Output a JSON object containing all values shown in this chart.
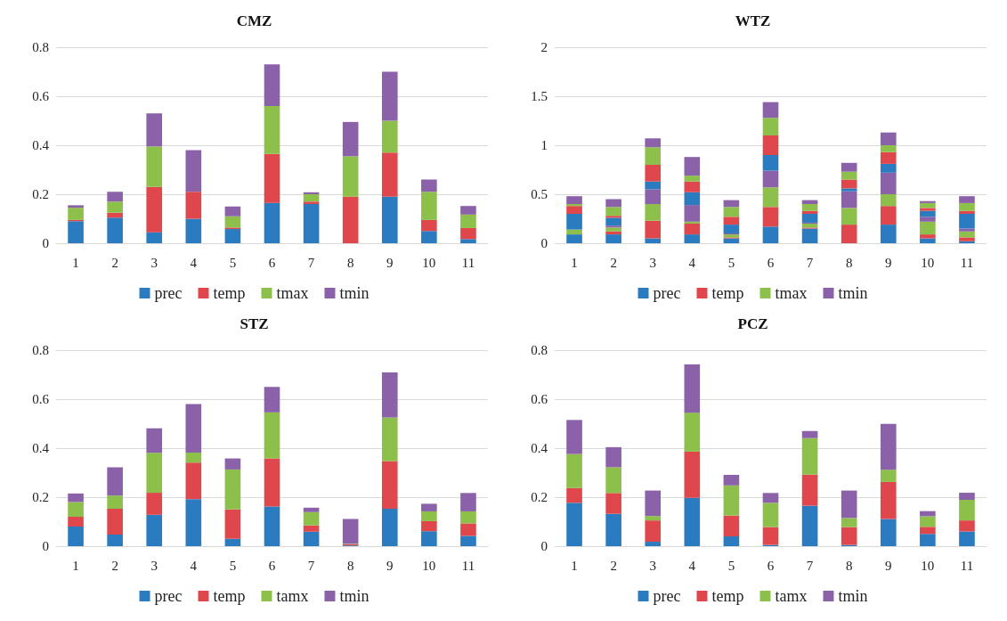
{
  "chart_data": [
    {
      "type": "bar",
      "title": "CMZ",
      "categories": [
        "1",
        "2",
        "3",
        "4",
        "5",
        "6",
        "7",
        "8",
        "9",
        "10",
        "11"
      ],
      "stacked": true,
      "ylim": [
        0,
        0.8
      ],
      "yticks": [
        0,
        0.2,
        0.4,
        0.6,
        0.8
      ],
      "grid": "y",
      "legend": "bottom",
      "series": [
        {
          "name": "prec",
          "color": "#2a7bc0",
          "values": [
            0.09,
            0.105,
            0.045,
            0.1,
            0.058,
            0.165,
            0.16,
            0,
            0.19,
            0.05,
            0.017
          ]
        },
        {
          "name": "temp",
          "color": "#e0474c",
          "values": [
            0.005,
            0.02,
            0.185,
            0.11,
            0.006,
            0.2,
            0.01,
            0.19,
            0.18,
            0.045,
            0.045
          ]
        },
        {
          "name": "tmax",
          "color": "#8dc04a",
          "values": [
            0.05,
            0.045,
            0.165,
            0,
            0.046,
            0.195,
            0.03,
            0.165,
            0.13,
            0.115,
            0.055
          ]
        },
        {
          "name": "tmin",
          "color": "#8b62a9",
          "values": [
            0.01,
            0.04,
            0.135,
            0.17,
            0.04,
            0.17,
            0.008,
            0.14,
            0.2,
            0.05,
            0.035
          ]
        }
      ]
    },
    {
      "type": "bar",
      "title": "WTZ",
      "categories": [
        "1",
        "2",
        "3",
        "4",
        "5",
        "6",
        "7",
        "8",
        "9",
        "10",
        "11"
      ],
      "stacked": true,
      "ylim": [
        0,
        2
      ],
      "yticks": [
        0,
        0.5,
        1,
        1.5,
        2
      ],
      "grid": "y",
      "legend": "bottom",
      "series": [
        {
          "name": "prec",
          "color": "#2a7bc0",
          "values": [
            0.09,
            0.09,
            0.05,
            0.09,
            0.05,
            0.17,
            0.15,
            0,
            0.19,
            0.05,
            0.02
          ]
        },
        {
          "name": "temp",
          "color": "#e0474c",
          "values": [
            0,
            0.03,
            0.18,
            0.11,
            0.01,
            0.2,
            0.01,
            0.19,
            0.19,
            0.04,
            0.04
          ]
        },
        {
          "name": "tmax",
          "color": "#8dc04a",
          "values": [
            0.05,
            0.04,
            0.17,
            0.02,
            0.03,
            0.2,
            0.04,
            0.17,
            0.12,
            0.13,
            0.06
          ]
        },
        {
          "name": "tmin",
          "color": "#8b62a9",
          "values": [
            0,
            0.02,
            0.15,
            0.17,
            0.01,
            0.17,
            0.01,
            0.17,
            0.22,
            0.05,
            0.03
          ]
        },
        {
          "color": "#2a7bc0",
          "values": [
            0.16,
            0.08,
            0.08,
            0.13,
            0.09,
            0.16,
            0.09,
            0.03,
            0.09,
            0.06,
            0.15
          ]
        },
        {
          "color": "#e0474c",
          "values": [
            0.08,
            0.02,
            0.17,
            0.11,
            0.08,
            0.2,
            0.03,
            0.09,
            0.12,
            0.03,
            0.03
          ]
        },
        {
          "color": "#8dc04a",
          "values": [
            0.02,
            0.09,
            0.18,
            0.06,
            0.1,
            0.18,
            0.07,
            0.08,
            0.07,
            0.05,
            0.08
          ]
        },
        {
          "color": "#8b62a9",
          "values": [
            0.08,
            0.08,
            0.09,
            0.19,
            0.07,
            0.16,
            0.04,
            0.09,
            0.13,
            0.02,
            0.07
          ]
        }
      ]
    },
    {
      "type": "bar",
      "title": "STZ",
      "categories": [
        "1",
        "2",
        "3",
        "4",
        "5",
        "6",
        "7",
        "8",
        "9",
        "10",
        "11"
      ],
      "stacked": true,
      "ylim": [
        0,
        0.8
      ],
      "yticks": [
        0,
        0.2,
        0.4,
        0.6,
        0.8
      ],
      "grid": "y",
      "legend": "bottom",
      "series": [
        {
          "name": "prec",
          "color": "#2a7bc0",
          "values": [
            0.08,
            0.047,
            0.128,
            0.192,
            0.03,
            0.162,
            0.059,
            0.003,
            0.153,
            0.061,
            0.042
          ]
        },
        {
          "name": "temp",
          "color": "#e0474c",
          "values": [
            0.04,
            0.106,
            0.09,
            0.149,
            0.12,
            0.196,
            0.026,
            0.005,
            0.194,
            0.041,
            0.051
          ]
        },
        {
          "name": "tamx",
          "color": "#8dc04a",
          "values": [
            0.06,
            0.053,
            0.163,
            0.041,
            0.163,
            0.188,
            0.054,
            0.002,
            0.178,
            0.04,
            0.049
          ]
        },
        {
          "name": "tmin",
          "color": "#8b62a9",
          "values": [
            0.035,
            0.116,
            0.1,
            0.198,
            0.045,
            0.104,
            0.018,
            0.101,
            0.184,
            0.031,
            0.075
          ]
        }
      ]
    },
    {
      "type": "bar",
      "title": "PCZ",
      "categories": [
        "1",
        "2",
        "3",
        "4",
        "5",
        "6",
        "7",
        "8",
        "9",
        "10",
        "11"
      ],
      "stacked": true,
      "ylim": [
        0,
        0.8
      ],
      "yticks": [
        0,
        0.2,
        0.4,
        0.6,
        0.8
      ],
      "grid": "y",
      "legend": "bottom",
      "series": [
        {
          "name": "prec",
          "color": "#2a7bc0",
          "values": [
            0.177,
            0.132,
            0.018,
            0.197,
            0.04,
            0.005,
            0.165,
            0.005,
            0.111,
            0.05,
            0.06
          ]
        },
        {
          "name": "temp",
          "color": "#e0474c",
          "values": [
            0.06,
            0.085,
            0.087,
            0.189,
            0.085,
            0.073,
            0.127,
            0.073,
            0.151,
            0.029,
            0.045
          ]
        },
        {
          "name": "tamx",
          "color": "#8dc04a",
          "values": [
            0.139,
            0.105,
            0.018,
            0.159,
            0.123,
            0.099,
            0.149,
            0.037,
            0.05,
            0.043,
            0.084
          ]
        },
        {
          "name": "tmin",
          "color": "#8b62a9",
          "values": [
            0.139,
            0.082,
            0.104,
            0.197,
            0.043,
            0.04,
            0.029,
            0.112,
            0.187,
            0.021,
            0.029
          ]
        }
      ]
    }
  ]
}
